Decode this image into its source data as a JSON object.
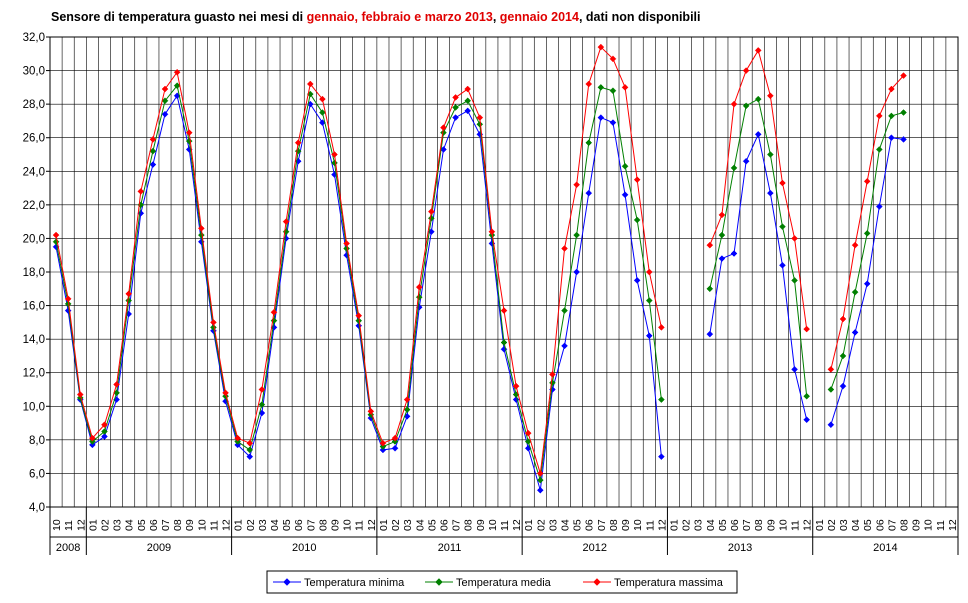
{
  "title": {
    "t1": "Sensore di temperatura guasto nei mesi di ",
    "t2": "gennaio, febbraio e marzo 2013",
    "t3": ", ",
    "t4": "gennaio 2014",
    "t5": ", dati non disponibili"
  },
  "colors": {
    "min": "#0000ff",
    "media": "#008000",
    "max": "#ff0000",
    "title_highlight": "#e00000"
  },
  "chart_data": {
    "type": "line",
    "title": "Sensore di temperatura guasto nei mesi di gennaio, febbraio e marzo 2013, gennaio 2014, dati non disponibili",
    "xlabel": "",
    "ylabel": "",
    "ylim": [
      4,
      32
    ],
    "y_ticks": [
      "4,0",
      "6,0",
      "8,0",
      "10,0",
      "12,0",
      "14,0",
      "16,0",
      "18,0",
      "20,0",
      "22,0",
      "24,0",
      "26,0",
      "28,0",
      "30,0",
      "32,0"
    ],
    "x_months": [
      "10",
      "11",
      "12",
      "01",
      "02",
      "03",
      "04",
      "05",
      "06",
      "07",
      "08",
      "09",
      "10",
      "11",
      "12",
      "01",
      "02",
      "03",
      "04",
      "05",
      "06",
      "07",
      "08",
      "09",
      "10",
      "11",
      "12",
      "01",
      "02",
      "03",
      "04",
      "05",
      "06",
      "07",
      "08",
      "09",
      "10",
      "11",
      "12",
      "01",
      "02",
      "03",
      "04",
      "05",
      "06",
      "07",
      "08",
      "09",
      "10",
      "11",
      "12",
      "01",
      "02",
      "03",
      "04",
      "05",
      "06",
      "07",
      "08",
      "09",
      "10",
      "11",
      "12",
      "01",
      "02",
      "03",
      "04",
      "05",
      "06",
      "07",
      "08",
      "09",
      "10",
      "11",
      "12"
    ],
    "years": [
      {
        "label": "2008",
        "start": 0,
        "count": 3
      },
      {
        "label": "2009",
        "start": 3,
        "count": 12
      },
      {
        "label": "2010",
        "start": 15,
        "count": 12
      },
      {
        "label": "2011",
        "start": 27,
        "count": 12
      },
      {
        "label": "2012",
        "start": 39,
        "count": 12
      },
      {
        "label": "2013",
        "start": 51,
        "count": 12
      },
      {
        "label": "2014",
        "start": 63,
        "count": 12
      }
    ],
    "series": [
      {
        "name": "Temperatura minima",
        "color": "#0000ff",
        "values": [
          19.5,
          15.7,
          10.4,
          7.7,
          8.2,
          10.4,
          15.5,
          21.5,
          24.4,
          27.4,
          28.5,
          25.3,
          19.8,
          14.5,
          10.3,
          7.7,
          7.0,
          9.6,
          14.7,
          20.0,
          24.6,
          28.0,
          26.9,
          23.8,
          19.0,
          14.8,
          9.3,
          7.4,
          7.5,
          9.4,
          15.9,
          20.4,
          25.3,
          27.2,
          27.6,
          26.2,
          19.7,
          13.4,
          10.4,
          7.5,
          5.0,
          11.0,
          13.6,
          18.0,
          22.7,
          27.2,
          26.9,
          22.6,
          17.5,
          14.2,
          7.0,
          null,
          null,
          null,
          14.3,
          18.8,
          19.1,
          24.6,
          26.2,
          22.7,
          18.4,
          12.2,
          9.2,
          null,
          8.9,
          11.2,
          14.4,
          17.3,
          21.9,
          26.0,
          25.9,
          null,
          null,
          null,
          null
        ]
      },
      {
        "name": "Temperatura media",
        "color": "#008000",
        "values": [
          19.8,
          16.1,
          10.5,
          7.9,
          8.5,
          10.8,
          16.3,
          22.0,
          25.2,
          28.2,
          29.1,
          25.8,
          20.2,
          14.7,
          10.6,
          7.9,
          7.4,
          10.1,
          15.1,
          20.4,
          25.2,
          28.6,
          27.5,
          24.5,
          19.4,
          15.1,
          9.5,
          7.6,
          7.9,
          9.8,
          16.5,
          21.2,
          26.3,
          27.8,
          28.2,
          26.8,
          20.2,
          13.8,
          10.7,
          7.9,
          5.6,
          11.4,
          15.7,
          20.2,
          25.7,
          29.0,
          28.8,
          24.3,
          21.1,
          16.3,
          10.4,
          null,
          null,
          null,
          17.0,
          20.2,
          24.2,
          27.9,
          28.3,
          25.0,
          20.7,
          17.5,
          10.6,
          null,
          11.0,
          13.0,
          16.8,
          20.3,
          25.3,
          27.3,
          27.5,
          null,
          null,
          null,
          null
        ]
      },
      {
        "name": "Temperatura massima",
        "color": "#ff0000",
        "values": [
          20.2,
          16.4,
          10.7,
          8.1,
          8.9,
          11.3,
          16.7,
          22.8,
          25.9,
          28.9,
          29.9,
          26.3,
          20.6,
          15.0,
          10.8,
          8.1,
          7.8,
          11.0,
          15.6,
          21.0,
          25.7,
          29.2,
          28.3,
          25.0,
          19.7,
          15.4,
          9.7,
          7.8,
          8.1,
          10.4,
          17.1,
          21.6,
          26.6,
          28.4,
          28.9,
          27.2,
          20.4,
          15.7,
          11.2,
          8.4,
          6.0,
          11.9,
          19.4,
          23.2,
          29.2,
          31.4,
          30.7,
          29.0,
          23.5,
          18.0,
          14.7,
          null,
          null,
          null,
          19.6,
          21.4,
          28.0,
          30.0,
          31.2,
          28.5,
          23.3,
          20.0,
          14.6,
          null,
          12.2,
          15.2,
          19.6,
          23.4,
          27.3,
          28.9,
          29.7,
          null,
          null,
          null,
          null
        ]
      }
    ],
    "legend_position": "bottom",
    "grid": true
  }
}
